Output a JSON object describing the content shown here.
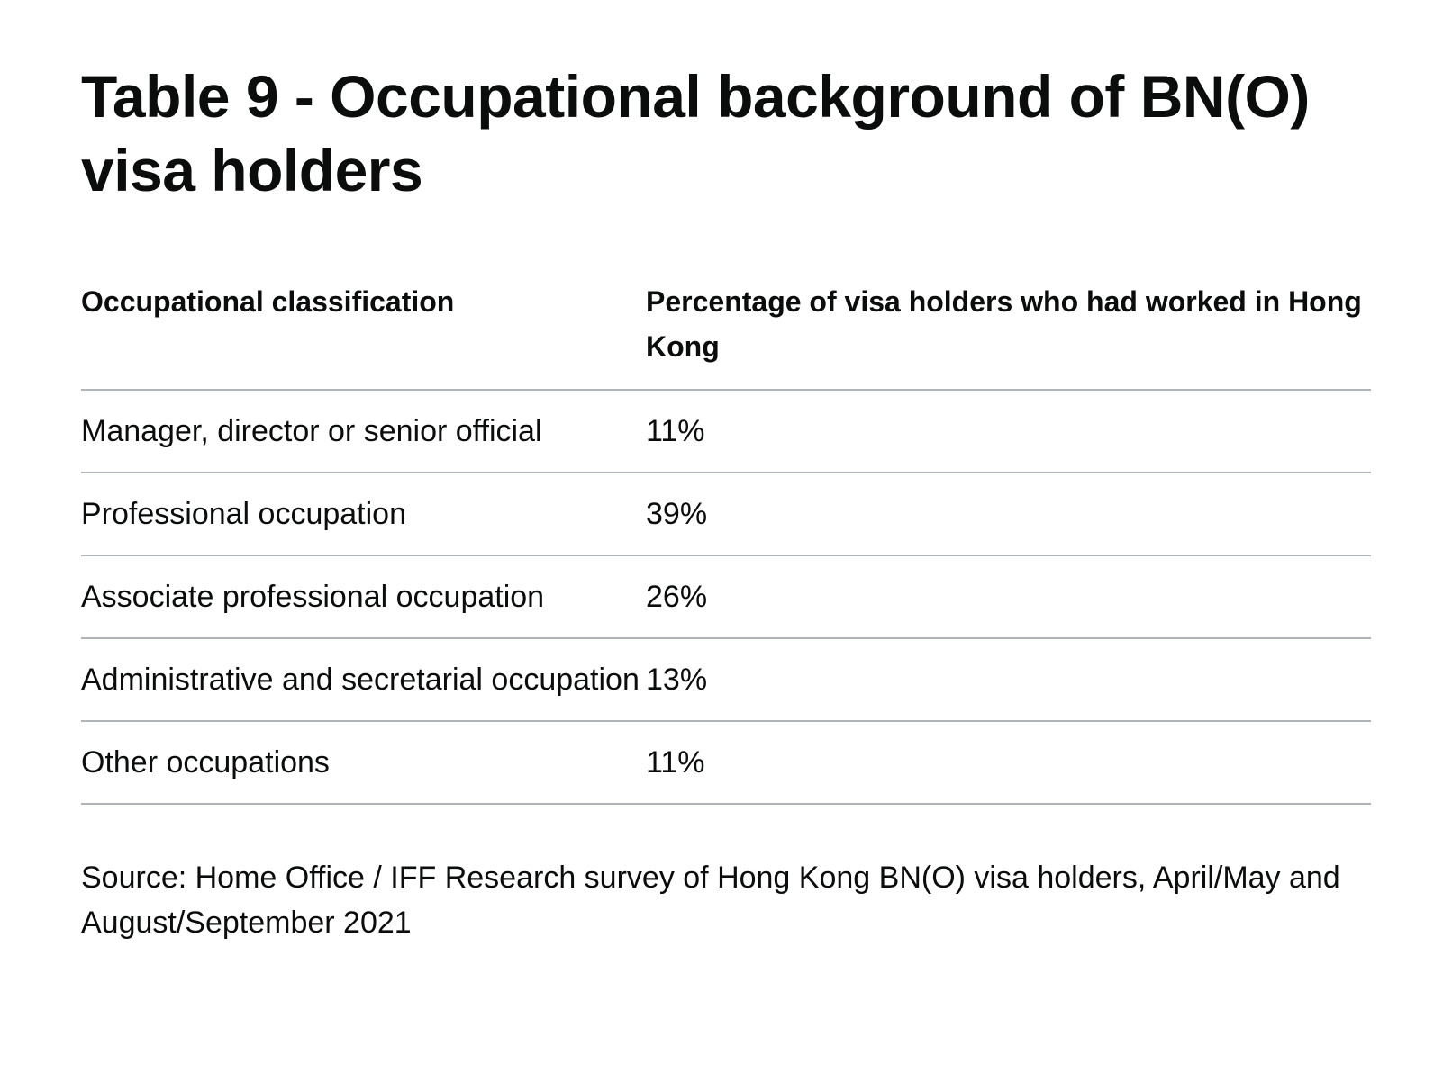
{
  "title": "Table 9 - Occupational background of BN(O) visa holders",
  "table": {
    "headers": [
      "Occupational classification",
      "Percentage of visa holders who had worked in Hong Kong"
    ],
    "rows": [
      [
        "Manager, director or senior official",
        "11%"
      ],
      [
        "Professional occupation",
        "39%"
      ],
      [
        "Associate professional occupation",
        "26%"
      ],
      [
        "Administrative and secretarial occupation",
        "13%"
      ],
      [
        "Other occupations",
        "11%"
      ]
    ]
  },
  "source": "Source: Home Office / IFF Research survey of Hong Kong BN(O) visa holders, April/May and August/September 2021",
  "colors": {
    "text": "#0b0c0c",
    "rule": "#b1b4b6",
    "background": "#ffffff"
  }
}
